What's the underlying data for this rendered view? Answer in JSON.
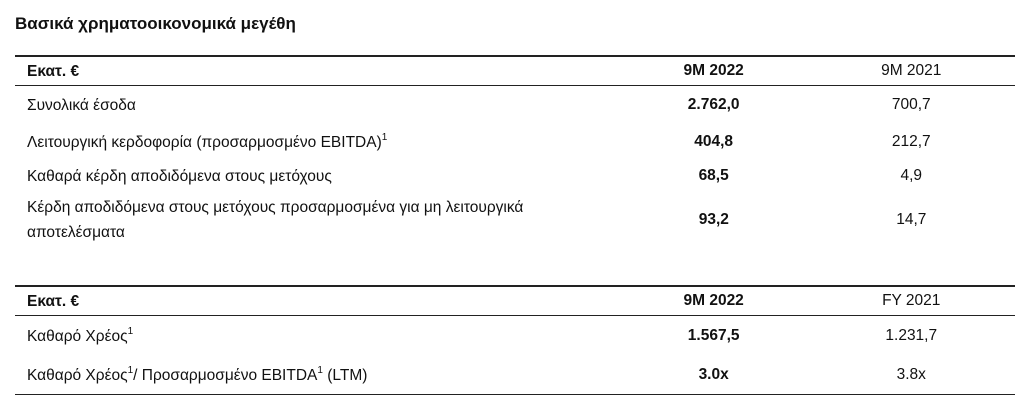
{
  "title": "Βασικά χρηματοοικονομικά μεγέθη",
  "tables": [
    {
      "header": [
        "Εκατ. €",
        "9M 2022",
        "9M 2021"
      ],
      "rows": [
        {
          "label": [
            {
              "text": "Συνολικά έσοδα"
            }
          ],
          "cells": [
            "2.762,0",
            "700,7"
          ]
        },
        {
          "label": [
            {
              "text": "Λειτουργική κερδοφορία (προσαρμοσμένο EBITDA)"
            },
            {
              "sup": "1"
            }
          ],
          "cells": [
            "404,8",
            "212,7"
          ]
        },
        {
          "label": [
            {
              "text": "Καθαρά κέρδη αποδιδόμενα στους μετόχους"
            }
          ],
          "cells": [
            "68,5",
            "4,9"
          ]
        },
        {
          "label": [
            {
              "text": "Κέρδη αποδιδόμενα στους μετόχους προσαρμοσμένα για μη λειτουργικά αποτελέσματα"
            }
          ],
          "cells": [
            "93,2",
            "14,7"
          ]
        }
      ]
    },
    {
      "header": [
        "Εκατ. €",
        "9M 2022",
        "FY 2021"
      ],
      "rows": [
        {
          "label": [
            {
              "text": "Καθαρό Χρέος"
            },
            {
              "sup": "1"
            }
          ],
          "cells": [
            "1.567,5",
            "1.231,7"
          ]
        },
        {
          "label": [
            {
              "text": "Καθαρό Χρέος"
            },
            {
              "sup": "1"
            },
            {
              "text": "/ Προσαρμοσμένο EBITDA"
            },
            {
              "sup": "1"
            },
            {
              "text": " (LTM)"
            }
          ],
          "cells": [
            "3.0x",
            "3.8x"
          ]
        }
      ]
    }
  ]
}
